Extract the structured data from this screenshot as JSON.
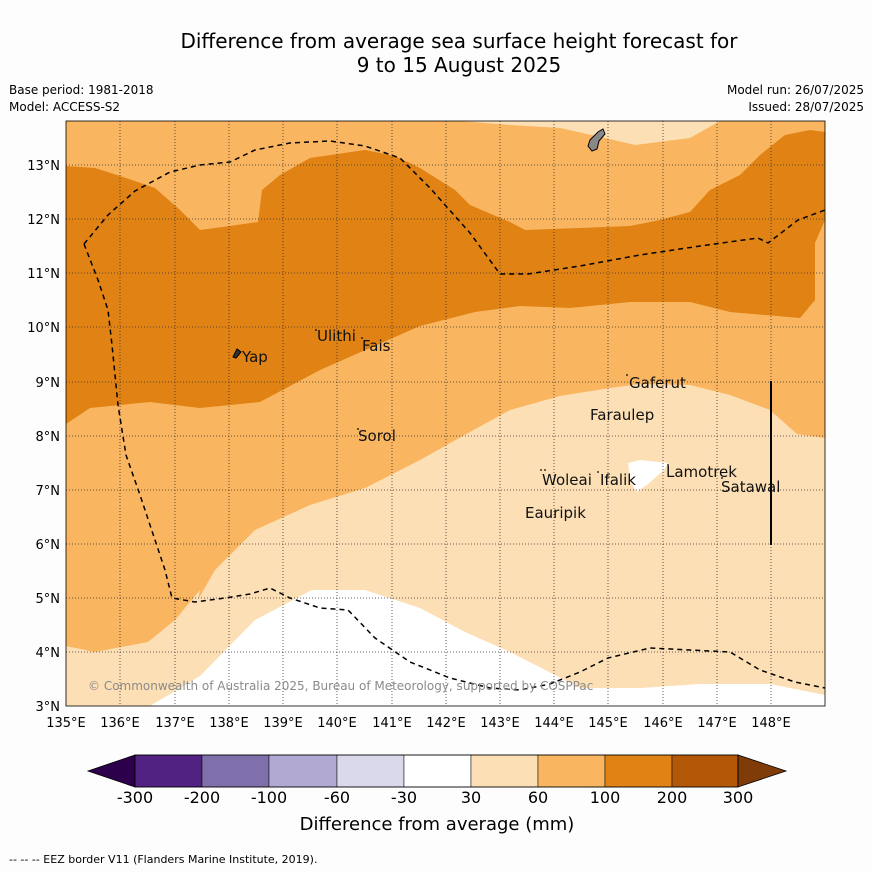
{
  "title_line1": "Difference from average sea surface height forecast for",
  "title_line2": "9 to 15 August 2025",
  "base_period": "Base period: 1981-2018",
  "model": "Model: ACCESS-S2",
  "model_run": "Model run: 26/07/2025",
  "issued": "Issued: 28/07/2025",
  "copyright": "© Commonwealth of Australia 2025, Bureau of Meteorology, supported by COSPPac",
  "lat_labels": [
    "3°N",
    "4°N",
    "5°N",
    "6°N",
    "7°N",
    "8°N",
    "9°N",
    "10°N",
    "11°N",
    "12°N",
    "13°N"
  ],
  "lon_labels": [
    "135°E",
    "136°E",
    "137°E",
    "138°E",
    "139°E",
    "140°E",
    "141°E",
    "142°E",
    "143°E",
    "144°E",
    "145°E",
    "146°E",
    "147°E",
    "148°E"
  ],
  "places": [
    {
      "name": "Yap",
      "lon": 138.35,
      "lat": 9.43
    },
    {
      "name": "Ulithi",
      "lon": 139.65,
      "lat": 9.83
    },
    {
      "name": "Fais",
      "lon": 140.45,
      "lat": 9.63
    },
    {
      "name": "Sorol",
      "lon": 140.4,
      "lat": 7.95
    },
    {
      "name": "Gaferut",
      "lon": 145.4,
      "lat": 8.9
    },
    {
      "name": "Faraulep",
      "lon": 144.65,
      "lat": 8.3
    },
    {
      "name": "Woleai",
      "lon": 143.8,
      "lat": 7.15
    },
    {
      "name": "Ifalik",
      "lon": 144.8,
      "lat": 7.15
    },
    {
      "name": "Lamotrek",
      "lon": 146.1,
      "lat": 7.3
    },
    {
      "name": "Satawal",
      "lon": 147.05,
      "lat": 7.0
    },
    {
      "name": "Eauripik",
      "lon": 143.35,
      "lat": 6.5
    }
  ],
  "colorbar": {
    "labels": [
      "-300",
      "-200",
      "-100",
      "-60",
      "-30",
      "30",
      "60",
      "100",
      "200",
      "300"
    ],
    "colors": [
      "#512282",
      "#7f70ab",
      "#b1a9d1",
      "#d9d9eb",
      "#ffffff",
      "#fddfb5",
      "#f9b55f",
      "#e08214",
      "#b35806"
    ],
    "under_color": "#2d004b",
    "over_color": "#7f3b08",
    "label": "Difference from average (mm)"
  },
  "footer": "--  --  -- EEZ border V11 (Flanders Marine Institute, 2019)."
}
